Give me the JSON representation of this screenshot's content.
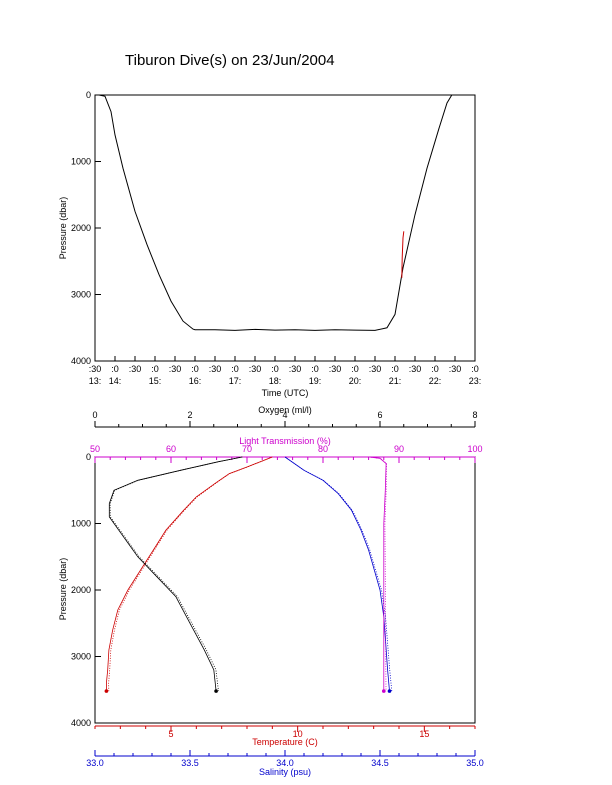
{
  "page": {
    "title": "Tiburon Dive(s) on 23/Jun/2004"
  },
  "colors": {
    "axis": "#000000",
    "temperature": "#cc0000",
    "salinity": "#0000cc",
    "light": "#cc00cc",
    "oxygen": "#000000",
    "pressure_red": "#cc0000"
  },
  "chart_data": [
    {
      "type": "line",
      "title": "Tiburon Dive(s) on 23/Jun/2004",
      "xlabel": "Time (UTC)",
      "ylabel": "Pressure (dbar)",
      "ylim": [
        4000,
        0
      ],
      "y_ticks": [
        "0",
        "1000",
        "2000",
        "3000",
        "4000"
      ],
      "x_ticks_top": [
        ":30",
        ":0",
        ":30",
        ":0",
        ":30",
        ":0",
        ":30",
        ":0",
        ":30",
        ":0",
        ":30",
        ":0",
        ":30",
        ":0",
        ":30",
        ":0",
        ":30",
        ":0",
        ":30",
        ":0"
      ],
      "x_ticks_bottom": [
        "13:",
        "14:",
        "15:",
        "16:",
        "17:",
        "18:",
        "19:",
        "20:",
        "21:",
        "22:",
        "23:"
      ],
      "xlim_hours": [
        13.5,
        23.0
      ],
      "series": [
        {
          "color": "#000000",
          "x": [
            13.5,
            13.6,
            13.75,
            13.9,
            14.0,
            14.2,
            14.5,
            14.8,
            15.1,
            15.4,
            15.7,
            15.95,
            16.0,
            16.5,
            17.0,
            17.5,
            18.0,
            18.5,
            19.0,
            19.5,
            20.0,
            20.5,
            20.8,
            21.0,
            21.2,
            21.5,
            21.8,
            22.1,
            22.3,
            22.42,
            22.48,
            22.6
          ],
          "y": [
            0,
            0,
            20,
            250,
            600,
            1100,
            1750,
            2250,
            2700,
            3100,
            3400,
            3520,
            3530,
            3530,
            3540,
            3525,
            3535,
            3530,
            3540,
            3530,
            3535,
            3540,
            3500,
            3300,
            2600,
            1800,
            1100,
            500,
            120,
            0,
            0,
            0
          ]
        },
        {
          "color": "#cc0000",
          "x": [
            21.17,
            21.18,
            21.2,
            21.22
          ],
          "y": [
            2750,
            2450,
            2150,
            2050
          ]
        }
      ]
    },
    {
      "type": "scatter",
      "ylabel": "Pressure (dbar)",
      "ylim": [
        4000,
        0
      ],
      "y_ticks": [
        "0",
        "1000",
        "2000",
        "3000",
        "4000"
      ],
      "axes": {
        "oxygen": {
          "label": "Oxygen (ml/l)",
          "range": [
            0,
            8
          ],
          "ticks": [
            "0",
            "2",
            "4",
            "6",
            "8"
          ]
        },
        "light": {
          "label": "Light Transmission (%)",
          "range": [
            50,
            100
          ],
          "ticks": [
            "50",
            "60",
            "70",
            "80",
            "90",
            "100"
          ]
        },
        "temperature": {
          "label": "Temperature (C)",
          "range": [
            2,
            17
          ],
          "ticks": [
            "5",
            "10",
            "15"
          ]
        },
        "salinity": {
          "label": "Salinity (psu)",
          "range": [
            33.0,
            35.0
          ],
          "ticks": [
            "33.0",
            "33.5",
            "34.0",
            "34.5",
            "35.0"
          ]
        }
      },
      "series": [
        {
          "name": "Temperature",
          "color": "#cc0000",
          "axis": "temperature",
          "x": [
            9.0,
            8.6,
            8.0,
            7.3,
            6.8,
            6.0,
            5.5,
            4.8,
            4.3,
            3.8,
            3.3,
            2.9,
            2.7,
            2.55,
            2.5,
            2.45,
            2.45
          ],
          "y": [
            0,
            60,
            150,
            250,
            380,
            600,
            800,
            1100,
            1400,
            1700,
            2000,
            2300,
            2600,
            2900,
            3200,
            3400,
            3520
          ]
        },
        {
          "name": "Salinity",
          "color": "#0000cc",
          "axis": "salinity",
          "x": [
            34.0,
            34.1,
            34.2,
            34.28,
            34.35,
            34.4,
            34.44,
            34.47,
            34.5,
            34.52,
            34.53,
            34.54,
            34.55
          ],
          "y": [
            0,
            200,
            350,
            550,
            800,
            1100,
            1400,
            1700,
            2000,
            2400,
            2800,
            3200,
            3520
          ]
        },
        {
          "name": "Light Transmission",
          "color": "#cc00cc",
          "axis": "light",
          "x": [
            86.0,
            87.5,
            88.3,
            88.2,
            88.0,
            88.0,
            88.0,
            88.0,
            88.0
          ],
          "y": [
            0,
            20,
            100,
            500,
            1000,
            1500,
            2200,
            3000,
            3520
          ]
        },
        {
          "name": "Oxygen",
          "color": "#000000",
          "axis": "oxygen",
          "x": [
            3.1,
            2.6,
            1.8,
            0.9,
            0.4,
            0.3,
            0.3,
            0.6,
            0.9,
            1.3,
            1.7,
            2.0,
            2.3,
            2.5,
            2.55
          ],
          "y": [
            0,
            70,
            200,
            350,
            500,
            700,
            900,
            1200,
            1500,
            1800,
            2100,
            2500,
            2900,
            3200,
            3520
          ]
        }
      ]
    }
  ]
}
